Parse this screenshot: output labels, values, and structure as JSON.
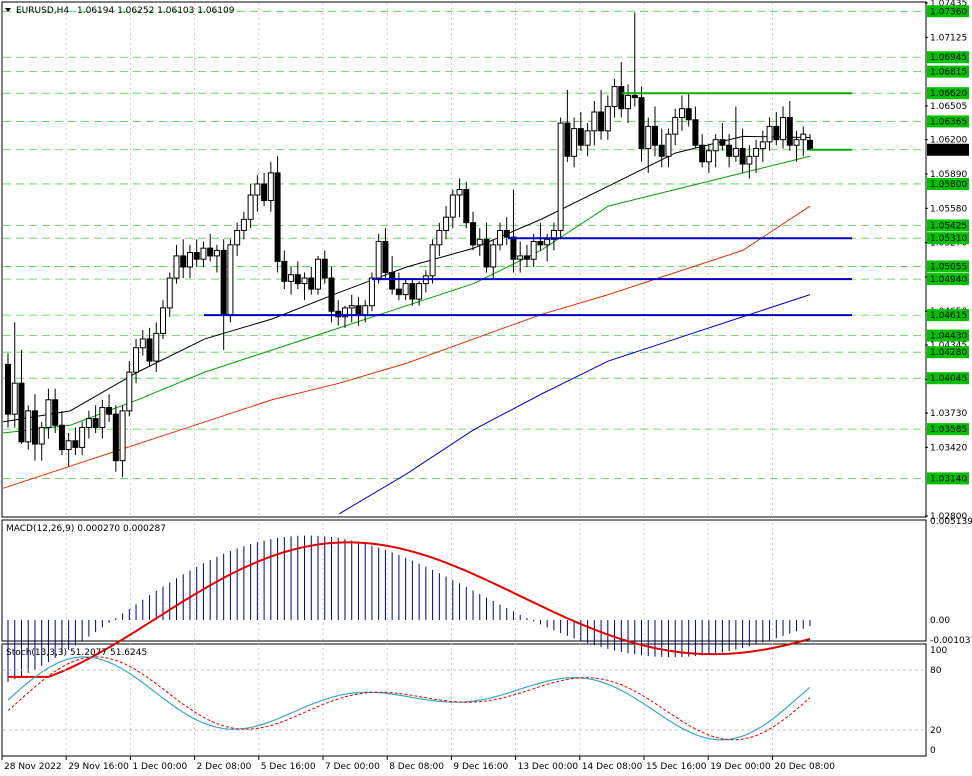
{
  "header": {
    "symbol_label": "EURUSD,H4",
    "ohlc": "1.06194 1.06252 1.06103 1.06109"
  },
  "macd": {
    "label": "MACD(12,26,9) 0.000270 0.000287"
  },
  "stoch": {
    "label": "Stoch(13,3,3) 51.2077 51.6245"
  },
  "colors": {
    "bg": "#ffffff",
    "grid": "#c0c0c0",
    "bull": "#ffffff",
    "bear": "#000000",
    "ma_black": "#000000",
    "ma_green": "#00a000",
    "ma_red": "#e03000",
    "ma_blue": "#0000c0",
    "support": "#0000c0",
    "resistance": "#00b000",
    "hline": "#00c000",
    "macd_hist": "#000080",
    "macd_signal": "#e00000",
    "stoch_main": "#3ba8c8",
    "stoch_signal": "#e00000",
    "price_tag_bg": "#00c000",
    "current_tag_bg": "#000000"
  },
  "chart_data": [
    {
      "type": "candlestick",
      "title": "EURUSD,H4",
      "ylim": [
        1.028,
        1.07435
      ],
      "x_labels": [
        "28 Nov 2022",
        "29 Nov 16:00",
        "1 Dec 00:00",
        "2 Dec 08:00",
        "5 Dec 16:00",
        "7 Dec 00:00",
        "8 Dec 08:00",
        "9 Dec 16:00",
        "13 Dec 00:00",
        "14 Dec 08:00",
        "15 Dec 16:00",
        "19 Dec 00:00",
        "20 Dec 08:00"
      ],
      "y_ticks": [
        "1.07435",
        "1.07125",
        "1.06505",
        "1.06200",
        "1.05890",
        "1.05580",
        "1.05270",
        "1.04960",
        "1.04650",
        "1.04345",
        "1.04035",
        "1.03730",
        "1.03420",
        "1.02800"
      ],
      "horizontal_levels": [
        "1.07360",
        "1.06945",
        "1.06815",
        "1.06620",
        "1.06365",
        "1.06109",
        "1.05800",
        "1.05425",
        "1.05310",
        "1.05055",
        "1.04940",
        "1.04615",
        "1.04430",
        "1.04280",
        "1.04045",
        "1.03585",
        "1.03140"
      ],
      "current_price": "1.06109",
      "candles": [
        [
          1.0417,
          1.0427,
          1.036,
          1.0372
        ],
        [
          1.0372,
          1.0455,
          1.036,
          1.04
        ],
        [
          1.04,
          1.043,
          1.0345,
          1.0347
        ],
        [
          1.0347,
          1.038,
          1.034,
          1.0375
        ],
        [
          1.0375,
          1.039,
          1.033,
          1.0345
        ],
        [
          1.0345,
          1.0365,
          1.033,
          1.036
        ],
        [
          1.036,
          1.0395,
          1.035,
          1.0385
        ],
        [
          1.0385,
          1.0395,
          1.0355,
          1.0362
        ],
        [
          1.0362,
          1.0375,
          1.0335,
          1.034
        ],
        [
          1.034,
          1.0355,
          1.0325,
          1.0348
        ],
        [
          1.0348,
          1.036,
          1.0335,
          1.0342
        ],
        [
          1.0342,
          1.0365,
          1.0335,
          1.036
        ],
        [
          1.036,
          1.0375,
          1.035,
          1.0368
        ],
        [
          1.0368,
          1.038,
          1.0355,
          1.036
        ],
        [
          1.036,
          1.0385,
          1.035,
          1.0378
        ],
        [
          1.0378,
          1.039,
          1.0365,
          1.0372
        ],
        [
          1.0372,
          1.038,
          1.032,
          1.033
        ],
        [
          1.033,
          1.038,
          1.0315,
          1.0375
        ],
        [
          1.0375,
          1.042,
          1.037,
          1.041
        ],
        [
          1.041,
          1.044,
          1.04,
          1.0432
        ],
        [
          1.0432,
          1.0448,
          1.0425,
          1.044
        ],
        [
          1.044,
          1.045,
          1.0415,
          1.042
        ],
        [
          1.042,
          1.0455,
          1.041,
          1.0445
        ],
        [
          1.0445,
          1.0475,
          1.044,
          1.0468
        ],
        [
          1.0468,
          1.05,
          1.046,
          1.0495
        ],
        [
          1.0495,
          1.0525,
          1.049,
          1.0515
        ],
        [
          1.0515,
          1.053,
          1.0495,
          1.0505
        ],
        [
          1.0505,
          1.0525,
          1.0495,
          1.0518
        ],
        [
          1.0518,
          1.053,
          1.0505,
          1.0512
        ],
        [
          1.0512,
          1.0528,
          1.0505,
          1.0522
        ],
        [
          1.0522,
          1.0535,
          1.051,
          1.0515
        ],
        [
          1.0515,
          1.0525,
          1.05,
          1.052
        ],
        [
          1.052,
          1.053,
          1.043,
          1.0462
        ],
        [
          1.0462,
          1.053,
          1.0455,
          1.0525
        ],
        [
          1.0525,
          1.0545,
          1.0515,
          1.0538
        ],
        [
          1.0538,
          1.0555,
          1.053,
          1.0548
        ],
        [
          1.0548,
          1.058,
          1.054,
          1.057
        ],
        [
          1.057,
          1.0588,
          1.0555,
          1.058
        ],
        [
          1.058,
          1.059,
          1.056,
          1.0565
        ],
        [
          1.0565,
          1.06,
          1.0555,
          1.059
        ],
        [
          1.059,
          1.0605,
          1.05,
          1.051
        ],
        [
          1.051,
          1.052,
          1.0485,
          1.0492
        ],
        [
          1.0492,
          1.0505,
          1.048,
          1.0498
        ],
        [
          1.0498,
          1.051,
          1.0485,
          1.049
        ],
        [
          1.049,
          1.05,
          1.0475,
          1.0495
        ],
        [
          1.0495,
          1.0505,
          1.048,
          1.0485
        ],
        [
          1.0485,
          1.0515,
          1.048,
          1.0512
        ],
        [
          1.0512,
          1.052,
          1.049,
          1.0495
        ],
        [
          1.0495,
          1.0505,
          1.0455,
          1.0465
        ],
        [
          1.0465,
          1.0475,
          1.0452,
          1.046
        ],
        [
          1.046,
          1.047,
          1.045,
          1.0468
        ],
        [
          1.0468,
          1.048,
          1.0455,
          1.047
        ],
        [
          1.047,
          1.0478,
          1.0452,
          1.0462
        ],
        [
          1.0462,
          1.0475,
          1.0455,
          1.047
        ],
        [
          1.047,
          1.05,
          1.0465,
          1.0495
        ],
        [
          1.0495,
          1.0535,
          1.049,
          1.0528
        ],
        [
          1.0528,
          1.054,
          1.0495,
          1.05
        ],
        [
          1.05,
          1.0515,
          1.048,
          1.0485
        ],
        [
          1.0485,
          1.05,
          1.0475,
          1.048
        ],
        [
          1.048,
          1.0495,
          1.0475,
          1.049
        ],
        [
          1.049,
          1.0495,
          1.047,
          1.0476
        ],
        [
          1.0476,
          1.0492,
          1.047,
          1.049
        ],
        [
          1.049,
          1.0502,
          1.0482,
          1.0497
        ],
        [
          1.0497,
          1.053,
          1.049,
          1.0525
        ],
        [
          1.0525,
          1.0545,
          1.0515,
          1.0538
        ],
        [
          1.0538,
          1.056,
          1.053,
          1.055
        ],
        [
          1.055,
          1.0575,
          1.054,
          1.057
        ],
        [
          1.057,
          1.0585,
          1.055,
          1.0575
        ],
        [
          1.0575,
          1.0582,
          1.054,
          1.0545
        ],
        [
          1.0545,
          1.0555,
          1.052,
          1.0525
        ],
        [
          1.0525,
          1.054,
          1.0515,
          1.053
        ],
        [
          1.053,
          1.0545,
          1.05,
          1.0505
        ],
        [
          1.0505,
          1.053,
          1.0495,
          1.0525
        ],
        [
          1.0525,
          1.0545,
          1.052,
          1.0538
        ],
        [
          1.0538,
          1.055,
          1.0525,
          1.0532
        ],
        [
          1.0532,
          1.0575,
          1.05,
          1.0512
        ],
        [
          1.0512,
          1.0528,
          1.05,
          1.0515
        ],
        [
          1.0515,
          1.0525,
          1.0505,
          1.0512
        ],
        [
          1.0512,
          1.0535,
          1.0505,
          1.0528
        ],
        [
          1.0528,
          1.0545,
          1.052,
          1.0525
        ],
        [
          1.0525,
          1.0535,
          1.051,
          1.053
        ],
        [
          1.053,
          1.0545,
          1.052,
          1.0538
        ],
        [
          1.0538,
          1.064,
          1.053,
          1.0635
        ],
        [
          1.0635,
          1.0665,
          1.06,
          1.0605
        ],
        [
          1.0605,
          1.064,
          1.0595,
          1.063
        ],
        [
          1.063,
          1.0645,
          1.061,
          1.0615
        ],
        [
          1.0615,
          1.0635,
          1.0605,
          1.0628
        ],
        [
          1.0628,
          1.0655,
          1.0615,
          1.0645
        ],
        [
          1.0645,
          1.0665,
          1.062,
          1.0628
        ],
        [
          1.0628,
          1.066,
          1.062,
          1.065
        ],
        [
          1.065,
          1.0675,
          1.064,
          1.0668
        ],
        [
          1.0668,
          1.069,
          1.064,
          1.0648
        ],
        [
          1.0648,
          1.067,
          1.0635,
          1.066
        ],
        [
          1.066,
          1.0735,
          1.065,
          1.0658
        ],
        [
          1.0658,
          1.0668,
          1.06,
          1.0612
        ],
        [
          1.0612,
          1.064,
          1.059,
          1.0632
        ],
        [
          1.0632,
          1.065,
          1.0605,
          1.0615
        ],
        [
          1.0615,
          1.063,
          1.0595,
          1.0605
        ],
        [
          1.0605,
          1.063,
          1.0595,
          1.0625
        ],
        [
          1.0625,
          1.0648,
          1.0615,
          1.064
        ],
        [
          1.064,
          1.066,
          1.0628,
          1.0648
        ],
        [
          1.0648,
          1.0662,
          1.0632,
          1.0638
        ],
        [
          1.0638,
          1.065,
          1.0612,
          1.0615
        ],
        [
          1.0615,
          1.0625,
          1.0595,
          1.06
        ],
        [
          1.06,
          1.0615,
          1.059,
          1.061
        ],
        [
          1.061,
          1.0625,
          1.0595,
          1.062
        ],
        [
          1.062,
          1.0635,
          1.061,
          1.0615
        ],
        [
          1.0615,
          1.0625,
          1.0595,
          1.0605
        ],
        [
          1.0605,
          1.065,
          1.06,
          1.0612
        ],
        [
          1.0612,
          1.063,
          1.059,
          1.0598
        ],
        [
          1.0598,
          1.0615,
          1.0585,
          1.0605
        ],
        [
          1.0605,
          1.062,
          1.059,
          1.0612
        ],
        [
          1.0612,
          1.0628,
          1.06,
          1.0618
        ],
        [
          1.0618,
          1.064,
          1.061,
          1.0632
        ],
        [
          1.0632,
          1.0645,
          1.0615,
          1.062
        ],
        [
          1.062,
          1.065,
          1.0612,
          1.064
        ],
        [
          1.064,
          1.0655,
          1.061,
          1.0615
        ],
        [
          1.0615,
          1.0628,
          1.06,
          1.062
        ],
        [
          1.062,
          1.0632,
          1.0605,
          1.0625
        ],
        [
          1.06194,
          1.06252,
          1.06103,
          1.06109
        ]
      ],
      "moving_averages": [
        {
          "name": "",
          "color": "#000000",
          "values": [
            1.0365,
            1.0375,
            1.041,
            1.044,
            1.0458,
            1.0482,
            1.0505,
            1.0522,
            1.0548,
            1.0578,
            1.0608,
            1.0623,
            1.0622
          ]
        },
        {
          "name": "",
          "color": "#00a000",
          "values": [
            1.0355,
            1.0362,
            1.0385,
            1.041,
            1.043,
            1.045,
            1.047,
            1.049,
            1.052,
            1.056,
            1.0575,
            1.059,
            1.0605
          ]
        },
        {
          "name": "",
          "color": "#e03000",
          "values": [
            1.0305,
            1.0325,
            1.0345,
            1.0365,
            1.0385,
            1.04,
            1.0418,
            1.044,
            1.0462,
            1.048,
            1.05,
            1.052,
            1.056
          ]
        },
        {
          "name": "",
          "color": "#0000c0",
          "values": [
            null,
            null,
            null,
            null,
            null,
            1.0282,
            1.0318,
            1.0358,
            1.039,
            1.042,
            1.044,
            1.046,
            1.048
          ]
        }
      ],
      "support_lines": [
        1.0531,
        1.0494,
        1.04615
      ],
      "resistance_lines": [
        1.0662,
        1.06109
      ]
    },
    {
      "type": "histogram+line",
      "title": "MACD(12,26,9) 0.000270 0.000287",
      "y_ticks": [
        "0.005139",
        "0.00",
        "-0.001037"
      ],
      "ylim": [
        -0.001037,
        0.005139
      ]
    },
    {
      "type": "line",
      "title": "Stoch(13,3,3) 51.2077 51.6245",
      "y_ticks": [
        "100",
        "80",
        "20",
        "0"
      ],
      "ylim": [
        0,
        100
      ]
    }
  ]
}
